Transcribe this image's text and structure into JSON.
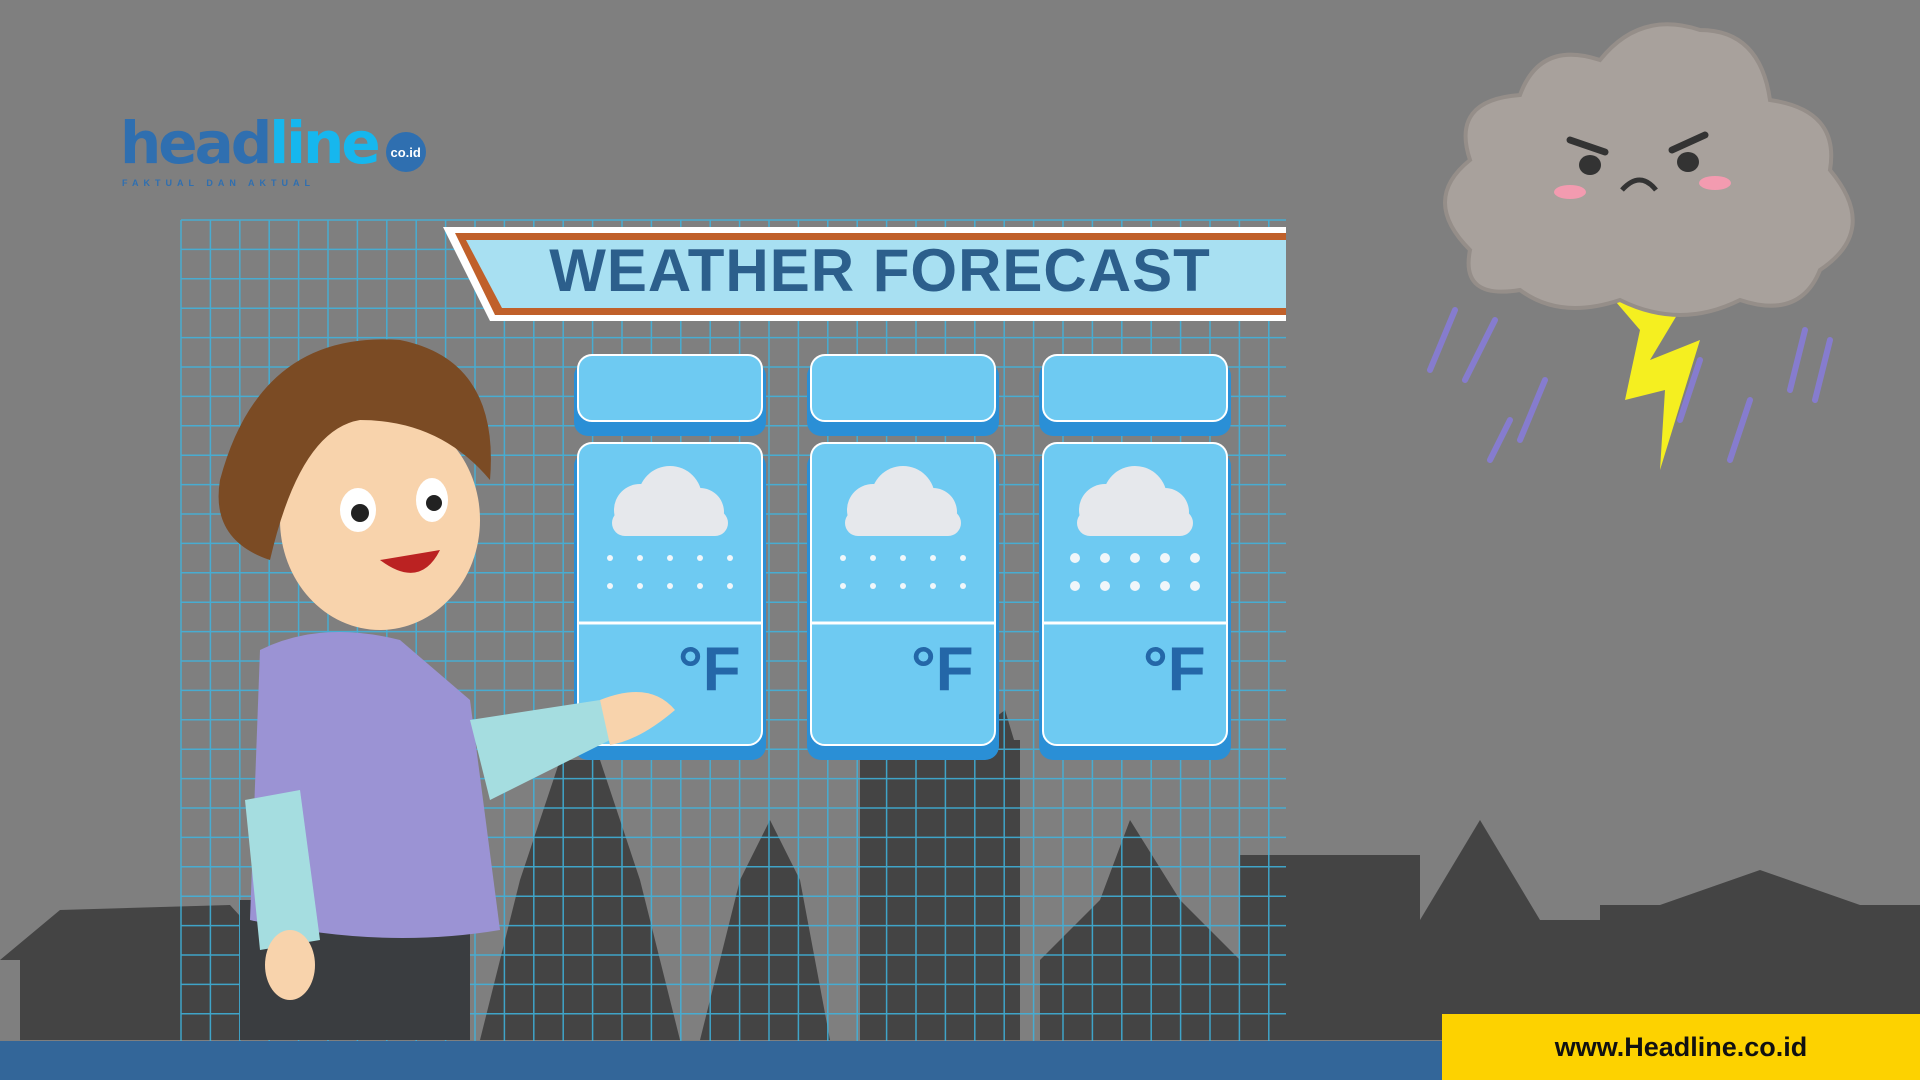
{
  "logo": {
    "part1": "head",
    "part2": "line",
    "badge": "co.id",
    "tagline": "FAKTUAL DAN AKTUAL"
  },
  "banner": {
    "title": "WEATHER FORECAST"
  },
  "forecast_cards": [
    {
      "condition_icon": "cloud-snow-icon",
      "unit": "°F"
    },
    {
      "condition_icon": "cloud-wind-snow-icon",
      "unit": "°F"
    },
    {
      "condition_icon": "cloud-hail-icon",
      "unit": "°F"
    }
  ],
  "footer": {
    "url": "www.Headline.co.id"
  },
  "colors": {
    "background": "#7f7f7f",
    "accent_yellow": "#fdd200",
    "footer_blue": "#336699",
    "card_blue": "#6ecaf2",
    "banner_orange": "#c0602a"
  }
}
